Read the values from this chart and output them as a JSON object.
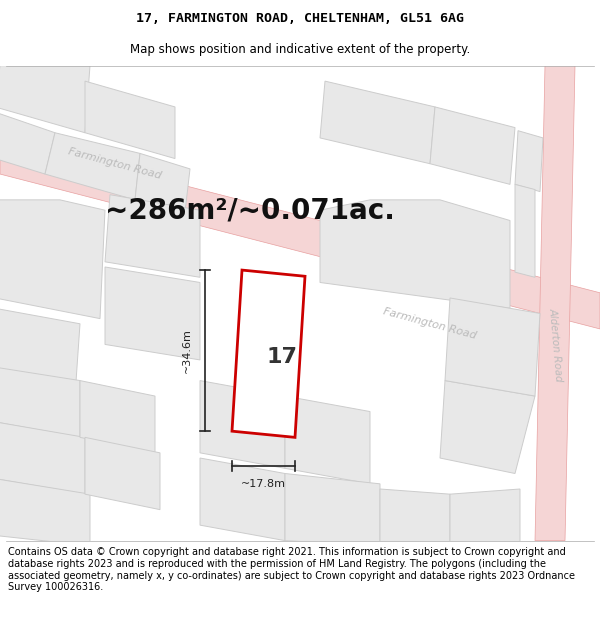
{
  "title_line1": "17, FARMINGTON ROAD, CHELTENHAM, GL51 6AG",
  "title_line2": "Map shows position and indicative extent of the property.",
  "area_text": "~286m²/~0.071ac.",
  "label_number": "17",
  "dim_width": "~17.8m",
  "dim_height": "~34.6m",
  "bg_color": "#f7f7f7",
  "block_color": "#e8e8e8",
  "block_stroke": "#cccccc",
  "road_fill": "#f5d5d5",
  "road_edge": "#e8a0a0",
  "plot_stroke": "#cc0000",
  "dim_color": "#222222",
  "road_label_color": "#bbbbbb",
  "footer_text": "Contains OS data © Crown copyright and database right 2021. This information is subject to Crown copyright and database rights 2023 and is reproduced with the permission of HM Land Registry. The polygons (including the associated geometry, namely x, y co-ordinates) are subject to Crown copyright and database rights 2023 Ordnance Survey 100026316.",
  "title_fontsize": 9.5,
  "subtitle_fontsize": 8.5,
  "area_fontsize": 20,
  "label_fontsize": 16,
  "footer_fontsize": 7.0,
  "road_label_fontsize": 8.0,
  "dim_fontsize": 8.0
}
